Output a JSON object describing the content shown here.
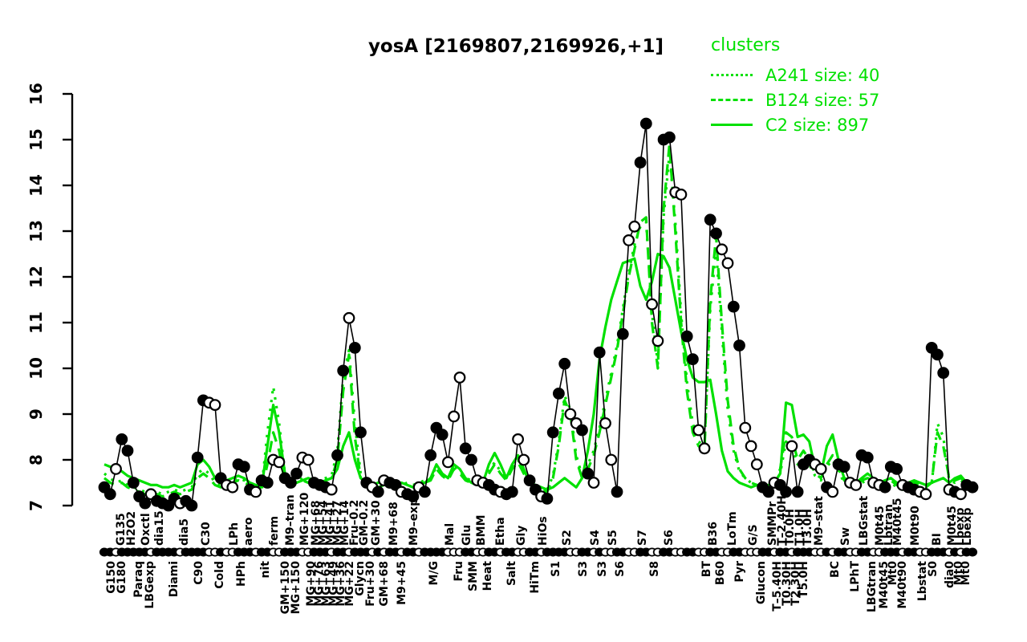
{
  "title": "yosA [2169807,2169926,+1]",
  "legend": {
    "heading": "clusters",
    "items": [
      {
        "label": "A241 size: 40",
        "style": "dotted"
      },
      {
        "label": "B124 size: 57",
        "style": "dashed"
      },
      {
        "label": "C2 size: 897",
        "style": "solid"
      }
    ]
  },
  "colors": {
    "cluster_green": "#00e000",
    "gene_black": "#000000",
    "background": "#ffffff"
  },
  "chart_data": {
    "type": "line",
    "title": "yosA [2169807,2169926,+1]",
    "ylim": [
      7,
      16
    ],
    "yticks": [
      7,
      8,
      9,
      10,
      11,
      12,
      13,
      14,
      15,
      16
    ],
    "grid": false,
    "legend_position": "top-right",
    "n": 150,
    "gene_series": {
      "name": "yosA expression (black, circles; filled=1 / open=0)",
      "values": [
        7.4,
        7.25,
        7.8,
        8.45,
        8.2,
        7.5,
        7.2,
        7.05,
        7.25,
        7.1,
        7.05,
        7.0,
        7.15,
        7.05,
        7.1,
        7.0,
        8.05,
        9.3,
        9.25,
        9.2,
        7.6,
        7.45,
        7.4,
        7.9,
        7.85,
        7.35,
        7.3,
        7.55,
        7.5,
        8.0,
        7.95,
        7.6,
        7.5,
        7.7,
        8.05,
        8.0,
        7.5,
        7.45,
        7.4,
        7.35,
        8.1,
        9.95,
        11.1,
        10.45,
        8.6,
        7.5,
        7.4,
        7.3,
        7.55,
        7.5,
        7.45,
        7.3,
        7.25,
        7.2,
        7.4,
        7.3,
        8.1,
        8.7,
        8.55,
        7.95,
        8.95,
        9.8,
        8.25,
        8.0,
        7.55,
        7.5,
        7.45,
        7.35,
        7.3,
        7.25,
        7.3,
        8.45,
        8.0,
        7.55,
        7.35,
        7.2,
        7.15,
        8.6,
        9.45,
        10.1,
        9.0,
        8.8,
        8.65,
        7.7,
        7.5,
        10.35,
        8.8,
        8.0,
        7.3,
        10.75,
        12.8,
        13.1,
        14.5,
        15.35,
        11.4,
        10.6,
        15.0,
        15.05,
        13.85,
        13.8,
        10.7,
        10.2,
        8.65,
        8.25,
        13.25,
        12.95,
        12.6,
        12.3,
        11.35,
        10.5,
        8.7,
        8.3,
        7.9,
        7.4,
        7.3,
        7.5,
        7.45,
        7.3,
        8.3,
        7.3,
        7.9,
        8.0,
        7.9,
        7.8,
        7.4,
        7.3,
        7.9,
        7.85,
        7.5,
        7.45,
        8.1,
        8.05,
        7.5,
        7.45,
        7.4,
        7.85,
        7.8,
        7.45,
        7.4,
        7.35,
        7.3,
        7.25,
        10.45,
        10.3,
        9.9,
        7.35,
        7.3,
        7.25,
        7.45,
        7.4
      ],
      "filled": [
        1,
        1,
        0,
        1,
        1,
        1,
        1,
        1,
        0,
        1,
        1,
        1,
        1,
        0,
        1,
        1,
        1,
        1,
        0,
        0,
        1,
        0,
        0,
        1,
        1,
        1,
        0,
        1,
        1,
        0,
        0,
        1,
        1,
        1,
        0,
        0,
        1,
        1,
        1,
        0,
        1,
        1,
        0,
        1,
        1,
        1,
        0,
        1,
        0,
        1,
        1,
        0,
        1,
        1,
        0,
        1,
        1,
        1,
        1,
        0,
        0,
        0,
        1,
        1,
        0,
        0,
        1,
        1,
        0,
        1,
        1,
        0,
        0,
        1,
        1,
        0,
        1,
        1,
        1,
        1,
        0,
        0,
        1,
        1,
        0,
        1,
        0,
        0,
        1,
        1,
        0,
        0,
        1,
        1,
        0,
        0,
        1,
        1,
        0,
        0,
        1,
        1,
        0,
        0,
        1,
        1,
        0,
        0,
        1,
        1,
        0,
        0,
        0,
        1,
        1,
        0,
        1,
        1,
        0,
        1,
        1,
        1,
        0,
        0,
        1,
        0,
        1,
        1,
        0,
        0,
        1,
        1,
        0,
        0,
        1,
        1,
        1,
        0,
        1,
        1,
        0,
        0,
        1,
        1,
        1,
        0,
        1,
        0,
        1,
        1
      ]
    },
    "series": [
      {
        "name": "A241",
        "style": "dotted",
        "color": "#00e000",
        "values": [
          7.7,
          7.6,
          7.5,
          7.55,
          7.45,
          7.4,
          7.35,
          7.3,
          7.35,
          7.3,
          7.25,
          7.3,
          7.35,
          7.3,
          7.35,
          7.4,
          7.7,
          7.8,
          7.7,
          7.5,
          7.45,
          7.5,
          7.55,
          7.6,
          7.55,
          7.5,
          7.45,
          7.4,
          8.6,
          9.6,
          8.8,
          7.7,
          7.55,
          7.5,
          7.6,
          7.55,
          7.5,
          7.55,
          7.6,
          7.65,
          8.2,
          9.8,
          10.4,
          8.8,
          7.7,
          7.55,
          7.5,
          7.45,
          7.5,
          7.55,
          7.5,
          7.45,
          7.5,
          7.45,
          7.5,
          7.55,
          7.6,
          7.85,
          7.7,
          7.6,
          7.85,
          7.75,
          7.6,
          7.55,
          7.5,
          7.55,
          7.75,
          7.95,
          7.75,
          7.6,
          7.85,
          8.0,
          7.75,
          7.55,
          7.45,
          7.4,
          7.35,
          7.65,
          8.4,
          9.4,
          9.1,
          8.1,
          7.65,
          7.9,
          8.2,
          8.7,
          9.3,
          9.9,
          10.5,
          11.3,
          12.1,
          12.7,
          13.1,
          13.2,
          11.2,
          10.1,
          13.3,
          14.7,
          13.2,
          11.2,
          9.7,
          8.8,
          8.4,
          8.3,
          11.3,
          12.6,
          10.8,
          9.1,
          8.2,
          7.75,
          7.6,
          7.5,
          7.45,
          7.4,
          7.45,
          7.5,
          7.7,
          8.4,
          8.3,
          7.9,
          8.0,
          7.9,
          7.65,
          7.55,
          7.85,
          8.0,
          7.75,
          7.5,
          7.45,
          7.4,
          7.5,
          7.55,
          7.5,
          7.4,
          7.45,
          7.5,
          7.4,
          7.35,
          7.4,
          7.45,
          7.4,
          7.35,
          7.45,
          8.8,
          8.5,
          7.55,
          7.5,
          7.55,
          7.45,
          7.4
        ]
      },
      {
        "name": "B124",
        "style": "dashed",
        "color": "#00e000",
        "values": [
          7.6,
          7.5,
          7.45,
          7.5,
          7.4,
          7.35,
          7.3,
          7.25,
          7.3,
          7.25,
          7.2,
          7.25,
          7.3,
          7.25,
          7.3,
          7.35,
          7.6,
          7.7,
          7.6,
          7.45,
          7.4,
          7.45,
          7.5,
          7.55,
          7.5,
          7.45,
          7.4,
          7.35,
          7.9,
          8.6,
          8.2,
          7.5,
          7.45,
          7.5,
          7.55,
          7.5,
          7.45,
          7.5,
          7.55,
          7.6,
          8.0,
          9.5,
          10.3,
          8.5,
          7.6,
          7.5,
          7.45,
          7.4,
          7.45,
          7.5,
          7.45,
          7.4,
          7.45,
          7.4,
          7.45,
          7.5,
          7.55,
          7.8,
          7.65,
          7.55,
          7.8,
          7.7,
          7.55,
          7.5,
          7.45,
          7.5,
          7.7,
          7.9,
          7.7,
          7.55,
          7.8,
          7.95,
          7.7,
          7.5,
          7.4,
          7.35,
          7.3,
          7.6,
          8.3,
          9.3,
          9.0,
          8.0,
          7.6,
          7.8,
          8.1,
          8.6,
          9.2,
          9.8,
          10.4,
          11.2,
          12.0,
          12.6,
          13.2,
          13.3,
          11.0,
          10.0,
          13.5,
          14.9,
          13.0,
          11.0,
          9.5,
          8.6,
          8.3,
          8.2,
          11.5,
          12.9,
          11.0,
          9.3,
          8.3,
          7.8,
          7.6,
          7.5,
          7.45,
          7.4,
          7.45,
          7.5,
          7.8,
          8.6,
          8.5,
          8.0,
          8.2,
          8.0,
          7.7,
          7.6,
          7.9,
          8.1,
          7.8,
          7.55,
          7.5,
          7.45,
          7.55,
          7.6,
          7.55,
          7.45,
          7.5,
          7.55,
          7.45,
          7.4,
          7.45,
          7.5,
          7.45,
          7.4,
          7.5,
          8.6,
          8.3,
          7.6,
          7.55,
          7.6,
          7.5,
          7.45
        ]
      },
      {
        "name": "C2",
        "style": "solid",
        "color": "#00e000",
        "values": [
          7.9,
          7.85,
          7.8,
          7.75,
          7.65,
          7.6,
          7.55,
          7.5,
          7.45,
          7.45,
          7.4,
          7.4,
          7.45,
          7.4,
          7.45,
          7.5,
          7.9,
          8.0,
          7.85,
          7.6,
          7.5,
          7.55,
          7.6,
          7.65,
          7.6,
          7.5,
          7.45,
          7.4,
          8.3,
          9.2,
          8.6,
          7.7,
          7.55,
          7.5,
          7.55,
          7.6,
          7.55,
          7.5,
          7.55,
          7.6,
          7.8,
          8.3,
          8.6,
          8.0,
          7.6,
          7.5,
          7.45,
          7.5,
          7.55,
          7.5,
          7.45,
          7.5,
          7.45,
          7.4,
          7.45,
          7.5,
          7.6,
          7.9,
          7.7,
          7.6,
          7.9,
          7.8,
          7.6,
          7.5,
          7.45,
          7.5,
          7.9,
          8.15,
          7.9,
          7.6,
          7.9,
          8.1,
          7.8,
          7.5,
          7.45,
          7.4,
          7.35,
          7.4,
          7.5,
          7.6,
          7.5,
          7.4,
          7.6,
          8.2,
          9.0,
          10.2,
          10.9,
          11.5,
          11.9,
          12.3,
          12.35,
          12.4,
          11.8,
          11.5,
          11.9,
          12.5,
          12.45,
          12.2,
          11.5,
          10.8,
          10.2,
          9.8,
          9.7,
          9.7,
          9.75,
          9.0,
          8.2,
          7.75,
          7.6,
          7.5,
          7.45,
          7.4,
          7.45,
          7.4,
          7.45,
          7.5,
          7.7,
          9.25,
          9.2,
          8.5,
          8.55,
          8.4,
          7.8,
          7.7,
          8.3,
          8.55,
          8.0,
          7.6,
          7.55,
          7.5,
          7.6,
          7.7,
          7.6,
          7.5,
          7.55,
          7.6,
          7.5,
          7.45,
          7.5,
          7.55,
          7.5,
          7.45,
          7.5,
          7.55,
          7.6,
          7.5,
          7.6,
          7.65,
          7.5,
          7.45
        ]
      }
    ],
    "x_labels_top": [
      {
        "px": 150,
        "label": "G135"
      },
      {
        "px": 163,
        "label": "H2O2"
      },
      {
        "px": 181,
        "label": "Oxctl"
      },
      {
        "px": 198,
        "label": "dia15"
      },
      {
        "px": 229,
        "label": "dia5"
      },
      {
        "px": 256,
        "label": "C30"
      },
      {
        "px": 291,
        "label": "LPh"
      },
      {
        "px": 309,
        "label": "aero"
      },
      {
        "px": 341,
        "label": "ferm"
      },
      {
        "px": 361,
        "label": "M9–tran"
      },
      {
        "px": 379,
        "label": "MG+120"
      },
      {
        "px": 393,
        "label": "MG+68"
      },
      {
        "px": 402,
        "label": "MG+54"
      },
      {
        "px": 411,
        "label": "MG+41"
      },
      {
        "px": 420,
        "label": "MG+27"
      },
      {
        "px": 429,
        "label": "MG+14"
      },
      {
        "px": 441,
        "label": "Fru–0.2"
      },
      {
        "px": 453,
        "label": "GM–0.2"
      },
      {
        "px": 468,
        "label": "GM+30"
      },
      {
        "px": 490,
        "label": "M9+68"
      },
      {
        "px": 515,
        "label": "M9–exp"
      },
      {
        "px": 560,
        "label": "Mal"
      },
      {
        "px": 581,
        "label": "Glu"
      },
      {
        "px": 599,
        "label": "BMM"
      },
      {
        "px": 623,
        "label": "Etha"
      },
      {
        "px": 649,
        "label": "Gly"
      },
      {
        "px": 676,
        "label": "HiOs"
      },
      {
        "px": 706,
        "label": "S2"
      },
      {
        "px": 741,
        "label": "S4"
      },
      {
        "px": 763,
        "label": "S5"
      },
      {
        "px": 800,
        "label": "S7"
      },
      {
        "px": 833,
        "label": "S6"
      },
      {
        "px": 888,
        "label": "B36"
      },
      {
        "px": 912,
        "label": "LoTm"
      },
      {
        "px": 938,
        "label": "G/S"
      },
      {
        "px": 962,
        "label": "SMMPr"
      },
      {
        "px": 974,
        "label": "T–2.40H"
      },
      {
        "px": 984,
        "label": "T0.0H"
      },
      {
        "px": 996,
        "label": "T1.0H"
      },
      {
        "px": 1006,
        "label": "T3.0H"
      },
      {
        "px": 1020,
        "label": "M9–stat"
      },
      {
        "px": 1053,
        "label": "Sw"
      },
      {
        "px": 1076,
        "label": "LBGstat"
      },
      {
        "px": 1096,
        "label": "M0t45"
      },
      {
        "px": 1107,
        "label": "Lbtran"
      },
      {
        "px": 1118,
        "label": "M40t45"
      },
      {
        "px": 1140,
        "label": "M0t90"
      },
      {
        "px": 1167,
        "label": "BI"
      },
      {
        "px": 1186,
        "label": "M0t45"
      },
      {
        "px": 1196,
        "label": "Lbexp"
      },
      {
        "px": 1205,
        "label": "Lbexp"
      }
    ],
    "x_labels_bottom": [
      {
        "px": 138,
        "label": "G150"
      },
      {
        "px": 151,
        "label": "G180"
      },
      {
        "px": 172,
        "label": "Paraq"
      },
      {
        "px": 186,
        "label": "LBGexp"
      },
      {
        "px": 216,
        "label": "Diami"
      },
      {
        "px": 247,
        "label": "C90"
      },
      {
        "px": 273,
        "label": "Cold"
      },
      {
        "px": 300,
        "label": "HPh"
      },
      {
        "px": 330,
        "label": "nit"
      },
      {
        "px": 355,
        "label": "GM+150"
      },
      {
        "px": 368,
        "label": "MG+150"
      },
      {
        "px": 387,
        "label": "MG+90"
      },
      {
        "px": 397,
        "label": "MG+76"
      },
      {
        "px": 406,
        "label": "MG+63"
      },
      {
        "px": 415,
        "label": "MG+49"
      },
      {
        "px": 424,
        "label": "MG+36"
      },
      {
        "px": 435,
        "label": "MG+22"
      },
      {
        "px": 448,
        "label": "Glycn"
      },
      {
        "px": 461,
        "label": "Fru+30"
      },
      {
        "px": 478,
        "label": "GM+68"
      },
      {
        "px": 500,
        "label": "M9+45"
      },
      {
        "px": 540,
        "label": "M/G"
      },
      {
        "px": 571,
        "label": "Fru"
      },
      {
        "px": 589,
        "label": "SMM"
      },
      {
        "px": 607,
        "label": "Heat"
      },
      {
        "px": 637,
        "label": "Salt"
      },
      {
        "px": 666,
        "label": "HiTm"
      },
      {
        "px": 692,
        "label": "S1"
      },
      {
        "px": 726,
        "label": "S3"
      },
      {
        "px": 750,
        "label": "S3"
      },
      {
        "px": 772,
        "label": "S6"
      },
      {
        "px": 815,
        "label": "S8"
      },
      {
        "px": 880,
        "label": "BT"
      },
      {
        "px": 897,
        "label": "B60"
      },
      {
        "px": 921,
        "label": "Pyr"
      },
      {
        "px": 948,
        "label": "Glucon"
      },
      {
        "px": 968,
        "label": "T–5.40H"
      },
      {
        "px": 980,
        "label": "T0.30H"
      },
      {
        "px": 991,
        "label": "T2.30H"
      },
      {
        "px": 1001,
        "label": "T5.0H"
      },
      {
        "px": 1040,
        "label": "BC"
      },
      {
        "px": 1065,
        "label": "LPhT"
      },
      {
        "px": 1086,
        "label": "LBGtran"
      },
      {
        "px": 1101,
        "label": "M40t45"
      },
      {
        "px": 1112,
        "label": "Mt0"
      },
      {
        "px": 1124,
        "label": "M40t90"
      },
      {
        "px": 1149,
        "label": "Lbstat"
      },
      {
        "px": 1162,
        "label": "S0"
      },
      {
        "px": 1183,
        "label": "dia0"
      },
      {
        "px": 1194,
        "label": "Mt0"
      },
      {
        "px": 1203,
        "label": "Mt0"
      }
    ]
  }
}
